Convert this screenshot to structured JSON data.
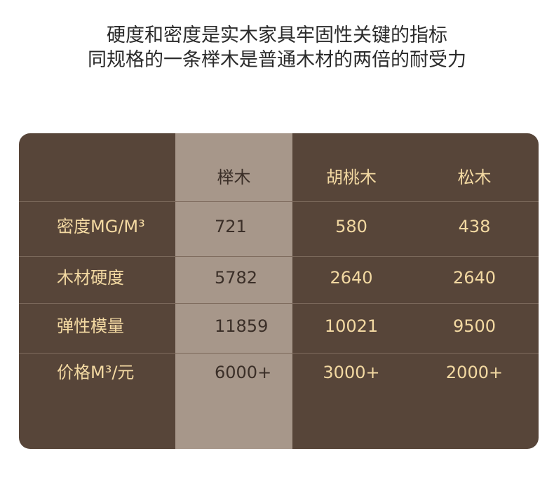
{
  "header": {
    "lines": [
      "硬度和密度是实木家具牢固性关键的指标",
      "同规格的一条榉木是普通木材的两倍的耐受力"
    ]
  },
  "table": {
    "columns": [
      "榉木",
      "胡桃木",
      "松木"
    ],
    "rows": [
      [
        "密度MG/M³",
        "721",
        "580",
        "438"
      ],
      [
        "木材硬度",
        "5782",
        "2640",
        "2640"
      ],
      [
        "弹性模量",
        "11859",
        "10021",
        "9500"
      ],
      [
        "价格M³/元",
        "6000+",
        "3000+",
        "2000+"
      ]
    ]
  }
}
